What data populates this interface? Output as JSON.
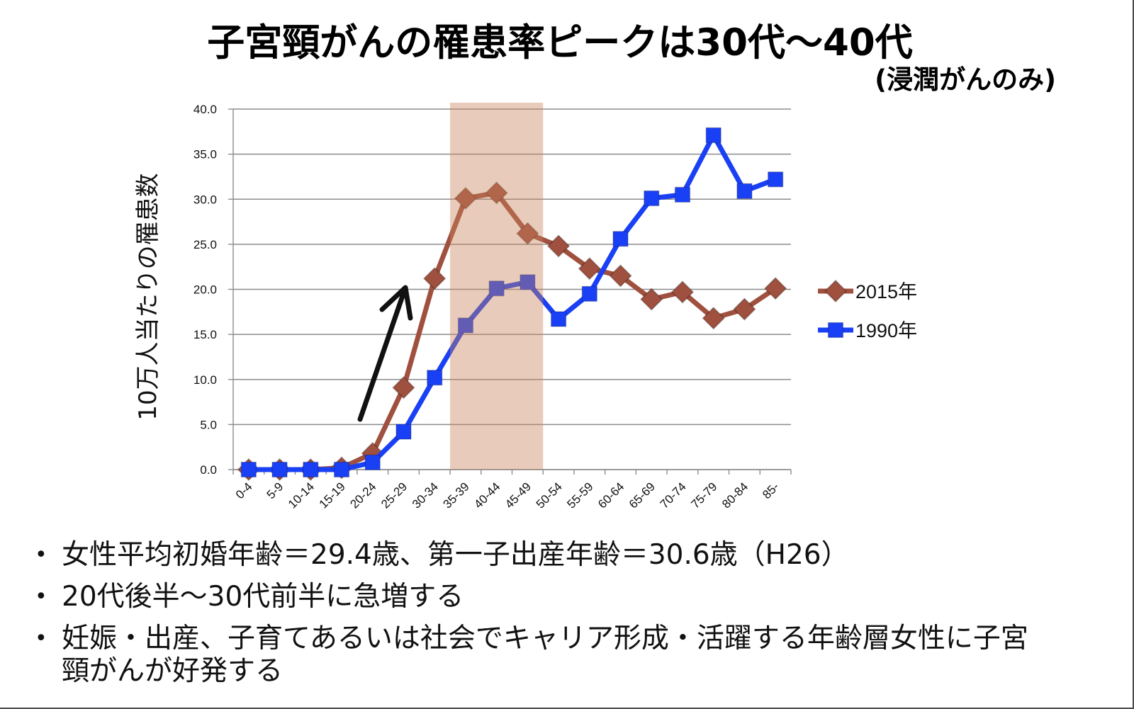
{
  "chart_data": {
    "type": "line",
    "title": "子宮頸がんの罹患率ピークは30代〜40代",
    "subtitle": "(浸潤がんのみ)",
    "ylabel": "10万人当たりの罹患数",
    "categories": [
      "0-4",
      "5-9",
      "10-14",
      "15-19",
      "20-24",
      "25-29",
      "30-34",
      "35-39",
      "40-44",
      "45-49",
      "50-54",
      "55-59",
      "60-64",
      "65-69",
      "70-74",
      "75-79",
      "80-84",
      "85-"
    ],
    "ylim": [
      0,
      40
    ],
    "yticks": [
      "0.0",
      "5.0",
      "10.0",
      "15.0",
      "20.0",
      "25.0",
      "30.0",
      "35.0",
      "40.0"
    ],
    "grid": true,
    "legend": "right",
    "highlight": {
      "from": "35-39",
      "to": "45-49",
      "color": "#c8825a"
    },
    "series": [
      {
        "name": "2015年",
        "marker": "diamond",
        "color": "#a0503e",
        "values": [
          0.0,
          0.0,
          0.0,
          0.2,
          1.8,
          9.1,
          21.2,
          30.1,
          30.7,
          26.2,
          24.8,
          22.3,
          21.5,
          18.9,
          19.7,
          16.8,
          17.8,
          20.1
        ]
      },
      {
        "name": "1990年",
        "marker": "square",
        "color": "#1a40f5",
        "values": [
          0.0,
          0.0,
          0.0,
          0.0,
          0.8,
          4.2,
          10.2,
          16.0,
          20.1,
          20.8,
          16.7,
          19.5,
          25.6,
          30.1,
          30.5,
          37.1,
          30.9,
          32.2
        ]
      }
    ]
  },
  "bullets": [
    "女性平均初婚年齢＝29.4歳、第一子出産年齢＝30.6歳（H26）",
    "20代後半〜30代前半に急増する",
    "妊娠・出産、子育てあるいは社会でキャリア形成・活躍する年齢層女性に子宮頸がんが好発する"
  ]
}
